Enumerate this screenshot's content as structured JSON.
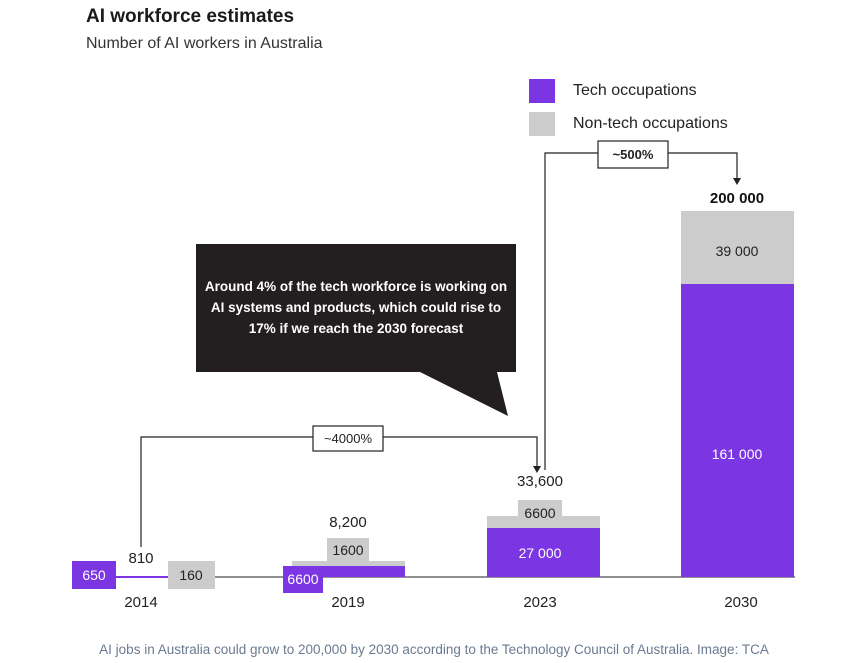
{
  "title": "AI workforce estimates",
  "subtitle": "Number of AI workers in Australia",
  "caption": "AI jobs in Australia could grow to 200,000 by 2030 according to the Technology Council of Australia. Image: TCA",
  "colors": {
    "tech": "#7b35e3",
    "nontech": "#cccccc",
    "callout": "#231f20"
  },
  "legend": {
    "tech": "Tech occupations",
    "nontech": "Non-tech occupations"
  },
  "callout_text": [
    "Around 4% of the tech workforce is working on",
    "AI systems and products, which could rise to",
    "17% if we reach the 2030 forecast"
  ],
  "growth": {
    "a": "~4000%",
    "b": "~500%"
  },
  "chart_data": {
    "type": "bar",
    "stacked": true,
    "categories": [
      "2014",
      "2019",
      "2023",
      "2030"
    ],
    "series": [
      {
        "name": "Tech occupations",
        "values": [
          650,
          6600,
          27000,
          161000
        ],
        "labels": [
          "650",
          "6600",
          "27 000",
          "161 000"
        ]
      },
      {
        "name": "Non-tech occupations",
        "values": [
          160,
          1600,
          6600,
          39000
        ],
        "labels": [
          "160",
          "1600",
          "6600",
          "39 000"
        ]
      }
    ],
    "totals": [
      "810",
      "8,200",
      "33,600",
      "200 000"
    ],
    "ylim": [
      0,
      200000
    ],
    "legend_position": "top-right",
    "grid": false
  }
}
